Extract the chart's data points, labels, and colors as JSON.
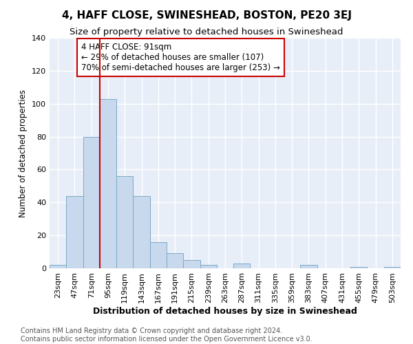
{
  "title": "4, HAFF CLOSE, SWINESHEAD, BOSTON, PE20 3EJ",
  "subtitle": "Size of property relative to detached houses in Swineshead",
  "xlabel": "Distribution of detached houses by size in Swineshead",
  "ylabel": "Number of detached properties",
  "bar_color": "#c8d8ed",
  "bar_edge_color": "#7aaac8",
  "plot_bg_color": "#e8eef8",
  "fig_bg_color": "#ffffff",
  "grid_color": "#ffffff",
  "categories": [
    "23sqm",
    "47sqm",
    "71sqm",
    "95sqm",
    "119sqm",
    "143sqm",
    "167sqm",
    "191sqm",
    "215sqm",
    "239sqm",
    "263sqm",
    "287sqm",
    "311sqm",
    "335sqm",
    "359sqm",
    "383sqm",
    "407sqm",
    "431sqm",
    "455sqm",
    "479sqm",
    "503sqm"
  ],
  "values": [
    2,
    44,
    80,
    103,
    56,
    44,
    16,
    9,
    5,
    2,
    0,
    3,
    0,
    0,
    0,
    2,
    0,
    0,
    1,
    0,
    1
  ],
  "vline_color": "#cc0000",
  "vline_index": 3,
  "annotation_text": "4 HAFF CLOSE: 91sqm\n← 29% of detached houses are smaller (107)\n70% of semi-detached houses are larger (253) →",
  "annotation_box_color": "#ffffff",
  "annotation_box_edge_color": "#cc0000",
  "ylim": [
    0,
    140
  ],
  "yticks": [
    0,
    20,
    40,
    60,
    80,
    100,
    120,
    140
  ],
  "footer_text": "Contains HM Land Registry data © Crown copyright and database right 2024.\nContains public sector information licensed under the Open Government Licence v3.0.",
  "title_fontsize": 11,
  "subtitle_fontsize": 9.5,
  "xlabel_fontsize": 9,
  "ylabel_fontsize": 8.5,
  "tick_fontsize": 8,
  "annotation_fontsize": 8.5,
  "footer_fontsize": 7
}
